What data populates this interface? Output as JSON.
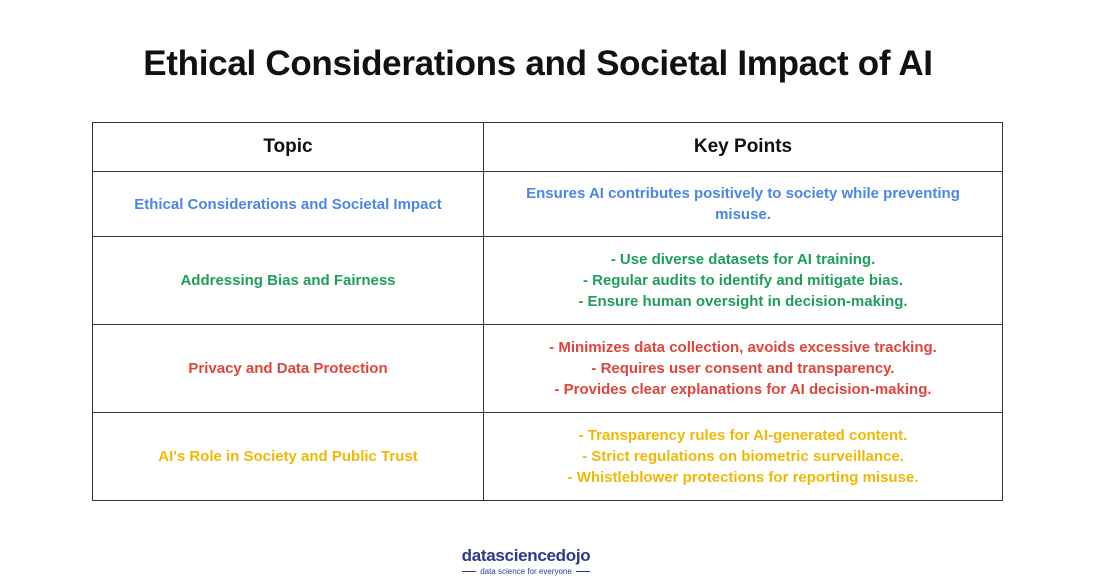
{
  "header": {
    "title": "Ethical Considerations and Societal Impact of AI"
  },
  "table": {
    "columns": [
      "Topic",
      "Key Points"
    ],
    "rows": [
      {
        "topic": "Ethical Considerations and Societal Impact",
        "points": [
          "Ensures AI contributes positively to society while preventing misuse."
        ],
        "color": "#4a86e8"
      },
      {
        "topic": "Addressing Bias and Fairness",
        "points": [
          "- Use diverse datasets for AI training.",
          "- Regular audits to identify and mitigate bias.",
          "- Ensure human oversight in decision-making."
        ],
        "color": "#1e9e5a"
      },
      {
        "topic": "Privacy and Data Protection",
        "points": [
          "- Minimizes data collection, avoids excessive tracking.",
          "- Requires user consent and transparency.",
          "- Provides clear explanations for AI decision-making."
        ],
        "color": "#e0443a"
      },
      {
        "topic": "AI's Role in Society and Public Trust",
        "points": [
          "- Transparency rules for AI-generated content.",
          "- Strict regulations on biometric surveillance.",
          "- Whistleblower protections for reporting misuse."
        ],
        "color": "#f2b705"
      }
    ]
  },
  "footer": {
    "logo": "datasciencedojo",
    "tagline": "data science for everyone"
  }
}
